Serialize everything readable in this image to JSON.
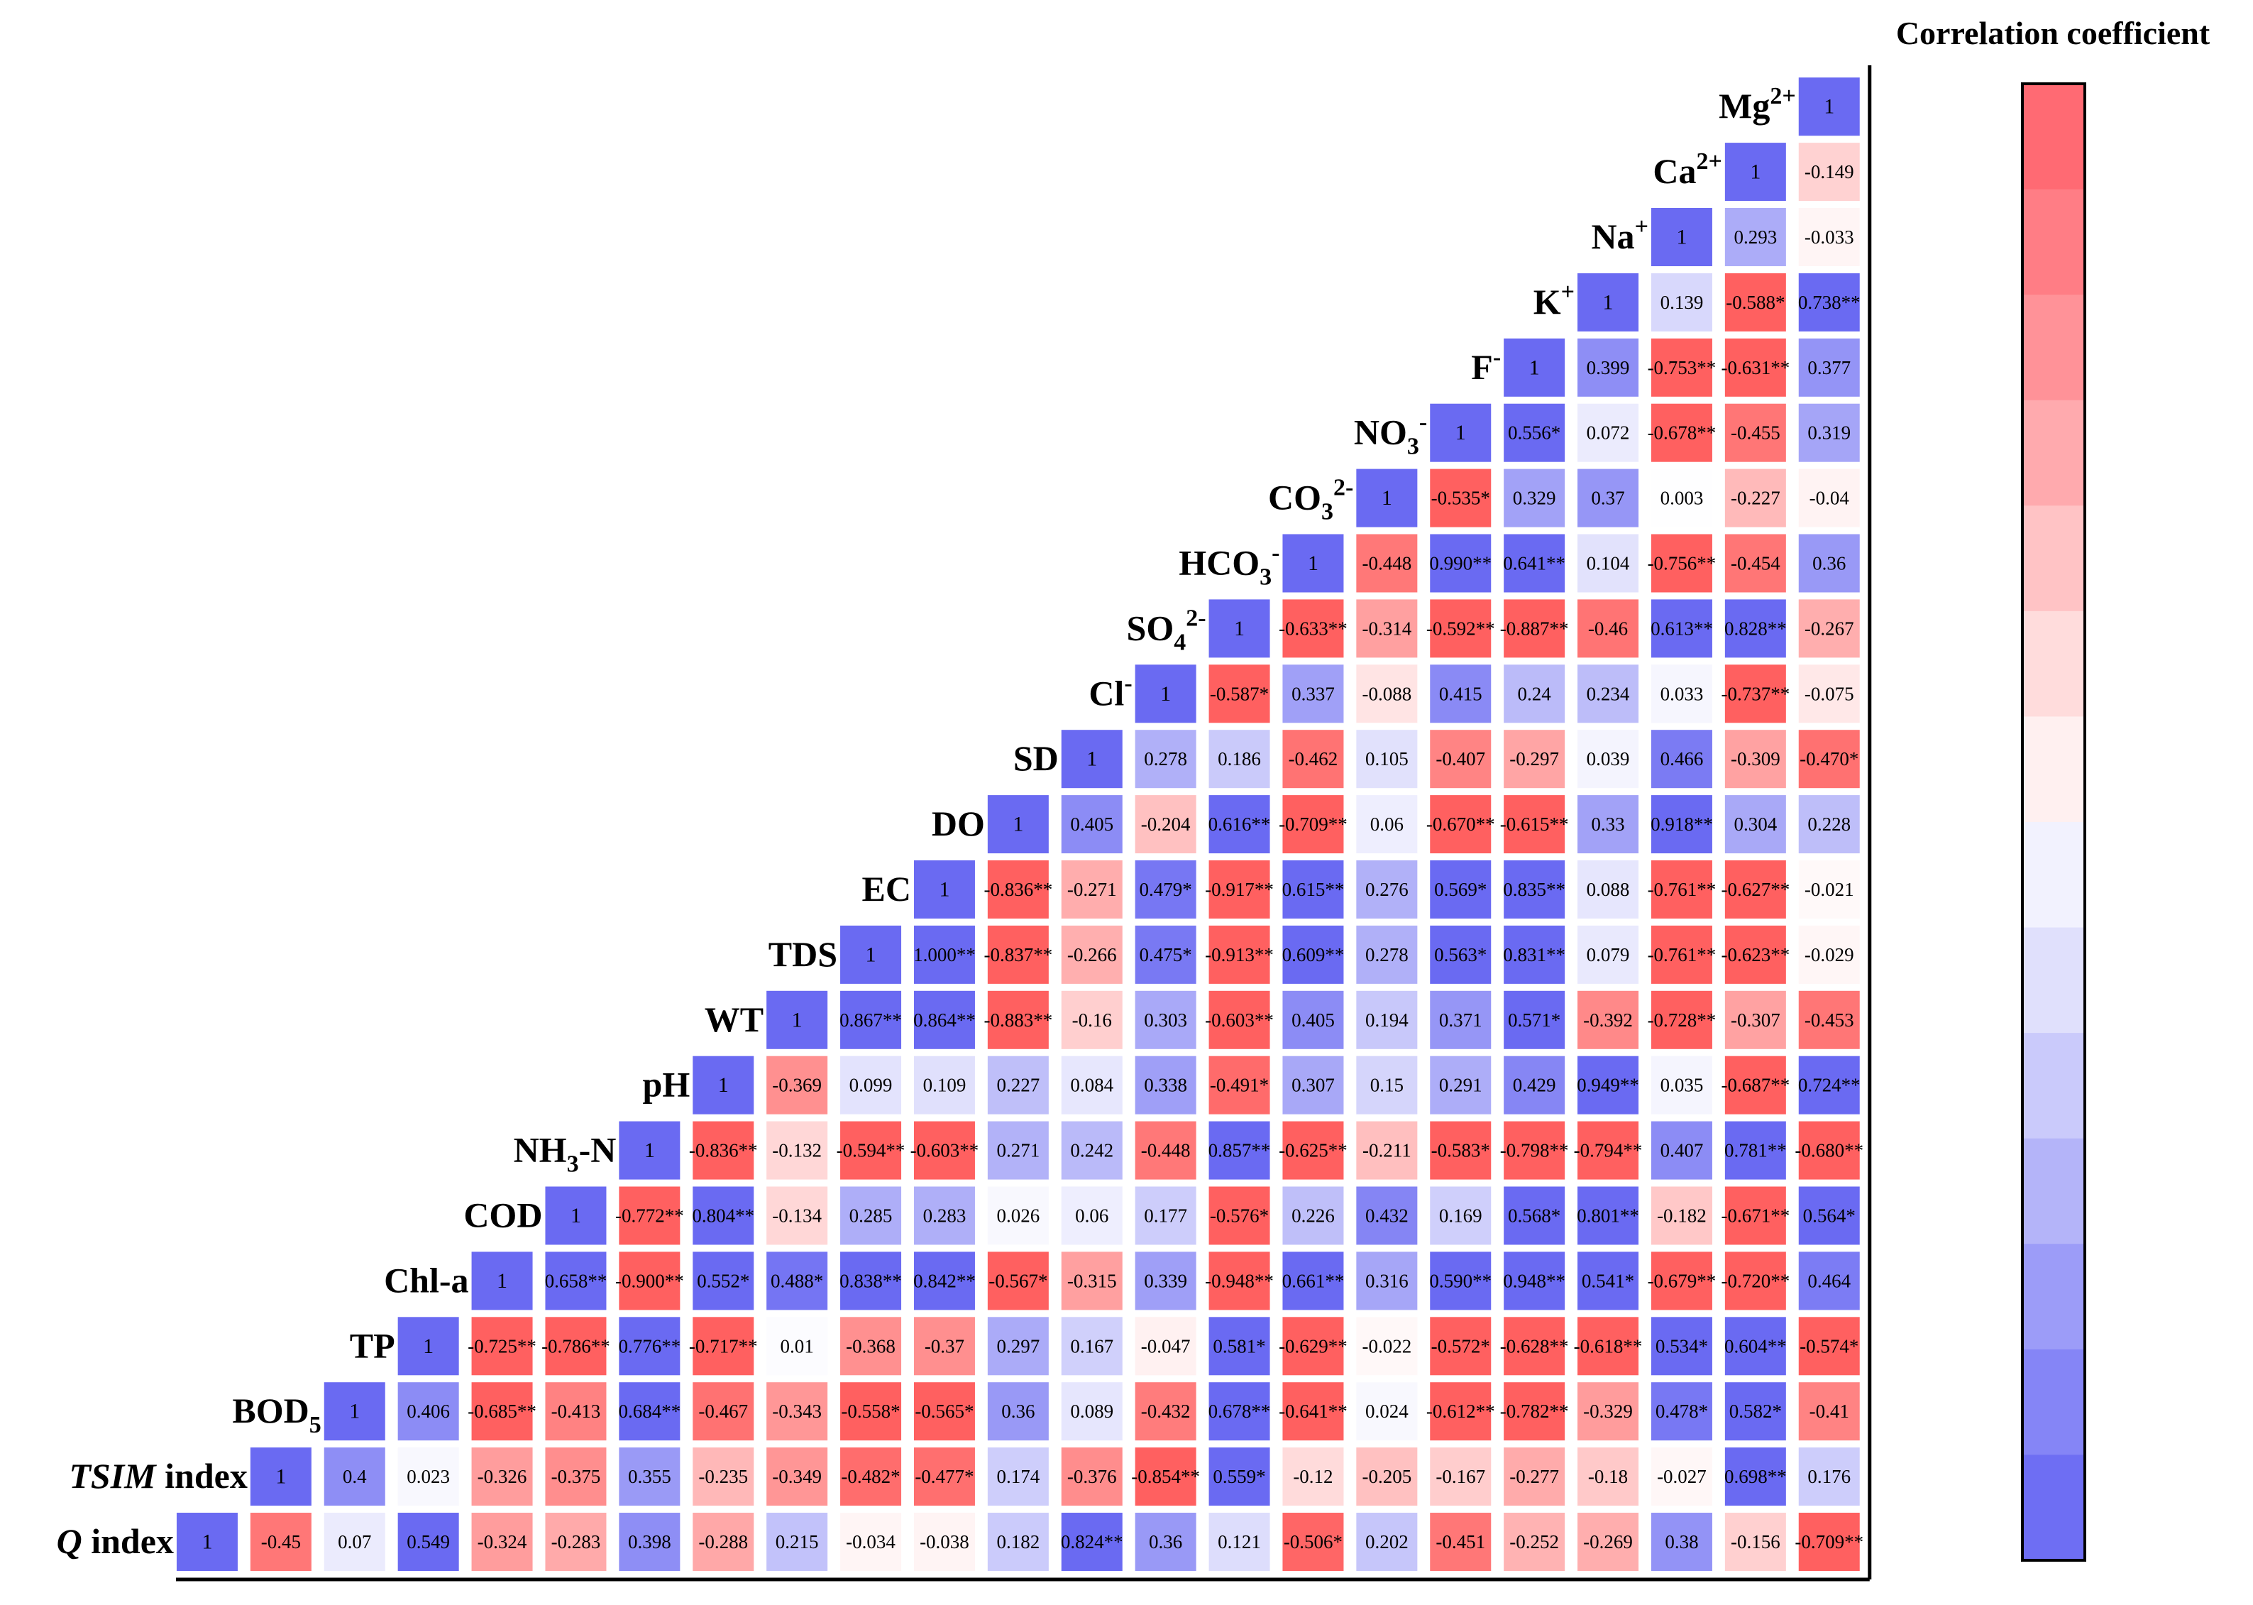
{
  "chart_data": {
    "type": "heatmap",
    "colorbar_title": "Correlation coefficient",
    "colorbar_colors": [
      "#ff6a73",
      "#ff7d85",
      "#ff9298",
      "#ffaaae",
      "#ffc3c5",
      "#ffdcdc",
      "#fff0f0",
      "#f2f2fe",
      "#e0e0fc",
      "#cacafb",
      "#b4b4f9",
      "#9c9cf8",
      "#8585f6",
      "#6e6ef3"
    ],
    "pos_color": "#ff6060",
    "neg_color": "#6a6af2",
    "diag_color": "#6a6af2",
    "variables": [
      {
        "id": "Q",
        "label": "Q",
        "label_sub": "",
        "label_sup": "",
        "label_suffix": " index",
        "italic": true
      },
      {
        "id": "TSIM",
        "label": "TSIM",
        "label_sub": "",
        "label_sup": "",
        "label_suffix": " index",
        "italic": true
      },
      {
        "id": "BOD5",
        "label": "BOD",
        "label_sub": "5",
        "label_sup": "",
        "label_suffix": "",
        "italic": false
      },
      {
        "id": "TP",
        "label": "TP",
        "label_sub": "",
        "label_sup": "",
        "label_suffix": "",
        "italic": false
      },
      {
        "id": "Chla",
        "label": "Chl-a",
        "label_sub": "",
        "label_sup": "",
        "label_suffix": "",
        "italic": false
      },
      {
        "id": "COD",
        "label": "COD",
        "label_sub": "",
        "label_sup": "",
        "label_suffix": "",
        "italic": false
      },
      {
        "id": "NH3N",
        "label": "NH",
        "label_sub": "3",
        "label_sup": "",
        "label_suffix": "-N",
        "italic": false
      },
      {
        "id": "pH",
        "label": "pH",
        "label_sub": "",
        "label_sup": "",
        "label_suffix": "",
        "italic": false
      },
      {
        "id": "WT",
        "label": "WT",
        "label_sub": "",
        "label_sup": "",
        "label_suffix": "",
        "italic": false
      },
      {
        "id": "TDS",
        "label": "TDS",
        "label_sub": "",
        "label_sup": "",
        "label_suffix": "",
        "italic": false
      },
      {
        "id": "EC",
        "label": "EC",
        "label_sub": "",
        "label_sup": "",
        "label_suffix": "",
        "italic": false
      },
      {
        "id": "DO",
        "label": "DO",
        "label_sub": "",
        "label_sup": "",
        "label_suffix": "",
        "italic": false
      },
      {
        "id": "SD",
        "label": "SD",
        "label_sub": "",
        "label_sup": "",
        "label_suffix": "",
        "italic": false
      },
      {
        "id": "Cl",
        "label": "Cl",
        "label_sub": "",
        "label_sup": "-",
        "label_suffix": "",
        "italic": false
      },
      {
        "id": "SO4",
        "label": "SO",
        "label_sub": "4",
        "label_sup": "2-",
        "label_suffix": "",
        "italic": false
      },
      {
        "id": "HCO3",
        "label": "HCO",
        "label_sub": "3",
        "label_sup": "-",
        "label_suffix": "",
        "italic": false
      },
      {
        "id": "CO3",
        "label": "CO",
        "label_sub": "3",
        "label_sup": "2-",
        "label_suffix": "",
        "italic": false
      },
      {
        "id": "NO3",
        "label": "NO",
        "label_sub": "3",
        "label_sup": "-",
        "label_suffix": "",
        "italic": false
      },
      {
        "id": "F",
        "label": "F",
        "label_sub": "",
        "label_sup": "-",
        "label_suffix": "",
        "italic": false
      },
      {
        "id": "K",
        "label": "K",
        "label_sub": "",
        "label_sup": "+",
        "label_suffix": "",
        "italic": false
      },
      {
        "id": "Na",
        "label": "Na",
        "label_sub": "",
        "label_sup": "+",
        "label_suffix": "",
        "italic": false
      },
      {
        "id": "Ca",
        "label": "Ca",
        "label_sub": "",
        "label_sup": "2+",
        "label_suffix": "",
        "italic": false
      },
      {
        "id": "Mg",
        "label": "Mg",
        "label_sub": "",
        "label_sup": "2+",
        "label_suffix": "",
        "italic": false
      }
    ],
    "rows": [
      {
        "values": [
          "1",
          "-0.45",
          "0.07",
          "0.549",
          "-0.324",
          "-0.283",
          "0.398",
          "-0.288",
          "0.215",
          "-0.034",
          "-0.038",
          "0.182",
          "0.824**",
          "0.36",
          "0.121",
          "-0.506*",
          "0.202",
          "-0.451",
          "-0.252",
          "-0.269",
          "0.38",
          "-0.156",
          "-0.709**"
        ]
      },
      {
        "values": [
          "1",
          "0.4",
          "0.023",
          "-0.326",
          "-0.375",
          "0.355",
          "-0.235",
          "-0.349",
          "-0.482*",
          "-0.477*",
          "0.174",
          "-0.376",
          "-0.854**",
          "0.559*",
          "-0.12",
          "-0.205",
          "-0.167",
          "-0.277",
          "-0.18",
          "-0.027",
          "0.698**",
          "0.176"
        ]
      },
      {
        "values": [
          "1",
          "0.406",
          "-0.685**",
          "-0.413",
          "0.684**",
          "-0.467",
          "-0.343",
          "-0.558*",
          "-0.565*",
          "0.36",
          "0.089",
          "-0.432",
          "0.678**",
          "-0.641**",
          "0.024",
          "-0.612**",
          "-0.782**",
          "-0.329",
          "0.478*",
          "0.582*",
          "-0.41"
        ]
      },
      {
        "values": [
          "1",
          "-0.725**",
          "-0.786**",
          "0.776**",
          "-0.717**",
          "0.01",
          "-0.368",
          "-0.37",
          "0.297",
          "0.167",
          "-0.047",
          "0.581*",
          "-0.629**",
          "-0.022",
          "-0.572*",
          "-0.628**",
          "-0.618**",
          "0.534*",
          "0.604**",
          "-0.574*"
        ]
      },
      {
        "values": [
          "1",
          "0.658**",
          "-0.900**",
          "0.552*",
          "0.488*",
          "0.838**",
          "0.842**",
          "-0.567*",
          "-0.315",
          "0.339",
          "-0.948**",
          "0.661**",
          "0.316",
          "0.590**",
          "0.948**",
          "0.541*",
          "-0.679**",
          "-0.720**",
          "0.464"
        ]
      },
      {
        "values": [
          "1",
          "-0.772**",
          "0.804**",
          "-0.134",
          "0.285",
          "0.283",
          "0.026",
          "0.06",
          "0.177",
          "-0.576*",
          "0.226",
          "0.432",
          "0.169",
          "0.568*",
          "0.801**",
          "-0.182",
          "-0.671**",
          "0.564*"
        ]
      },
      {
        "values": [
          "1",
          "-0.836**",
          "-0.132",
          "-0.594**",
          "-0.603**",
          "0.271",
          "0.242",
          "-0.448",
          "0.857**",
          "-0.625**",
          "-0.211",
          "-0.583*",
          "-0.798**",
          "-0.794**",
          "0.407",
          "0.781**",
          "-0.680**"
        ]
      },
      {
        "values": [
          "1",
          "-0.369",
          "0.099",
          "0.109",
          "0.227",
          "0.084",
          "0.338",
          "-0.491*",
          "0.307",
          "0.15",
          "0.291",
          "0.429",
          "0.949**",
          "0.035",
          "-0.687**",
          "0.724**"
        ]
      },
      {
        "values": [
          "1",
          "0.867**",
          "0.864**",
          "-0.883**",
          "-0.16",
          "0.303",
          "-0.603**",
          "0.405",
          "0.194",
          "0.371",
          "0.571*",
          "-0.392",
          "-0.728**",
          "-0.307",
          "-0.453"
        ]
      },
      {
        "values": [
          "1",
          "1.000**",
          "-0.837**",
          "-0.266",
          "0.475*",
          "-0.913**",
          "0.609**",
          "0.278",
          "0.563*",
          "0.831**",
          "0.079",
          "-0.761**",
          "-0.623**",
          "-0.029"
        ]
      },
      {
        "values": [
          "1",
          "-0.836**",
          "-0.271",
          "0.479*",
          "-0.917**",
          "0.615**",
          "0.276",
          "0.569*",
          "0.835**",
          "0.088",
          "-0.761**",
          "-0.627**",
          "-0.021"
        ]
      },
      {
        "values": [
          "1",
          "0.405",
          "-0.204",
          "0.616**",
          "-0.709**",
          "0.06",
          "-0.670**",
          "-0.615**",
          "0.33",
          "0.918**",
          "0.304",
          "0.228"
        ]
      },
      {
        "values": [
          "1",
          "0.278",
          "0.186",
          "-0.462",
          "0.105",
          "-0.407",
          "-0.297",
          "0.039",
          "0.466",
          "-0.309",
          "-0.470*"
        ]
      },
      {
        "values": [
          "1",
          "-0.587*",
          "0.337",
          "-0.088",
          "0.415",
          "0.24",
          "0.234",
          "0.033",
          "-0.737**",
          "-0.075"
        ]
      },
      {
        "values": [
          "1",
          "-0.633**",
          "-0.314",
          "-0.592**",
          "-0.887**",
          "-0.46",
          "0.613**",
          "0.828**",
          "-0.267"
        ]
      },
      {
        "values": [
          "1",
          "-0.448",
          "0.990**",
          "0.641**",
          "0.104",
          "-0.756**",
          "-0.454",
          "0.36"
        ]
      },
      {
        "values": [
          "1",
          "-0.535*",
          "0.329",
          "0.37",
          "0.003",
          "-0.227",
          "-0.04"
        ]
      },
      {
        "values": [
          "1",
          "0.556*",
          "0.072",
          "-0.678**",
          "-0.455",
          "0.319"
        ]
      },
      {
        "values": [
          "1",
          "0.399",
          "-0.753**",
          "-0.631**",
          "0.377"
        ]
      },
      {
        "values": [
          "1",
          "0.139",
          "-0.588*",
          "0.738**"
        ]
      },
      {
        "values": [
          "1",
          "0.293",
          "-0.033"
        ]
      },
      {
        "values": [
          "1",
          "-0.149"
        ]
      },
      {
        "values": [
          "1"
        ]
      }
    ]
  }
}
